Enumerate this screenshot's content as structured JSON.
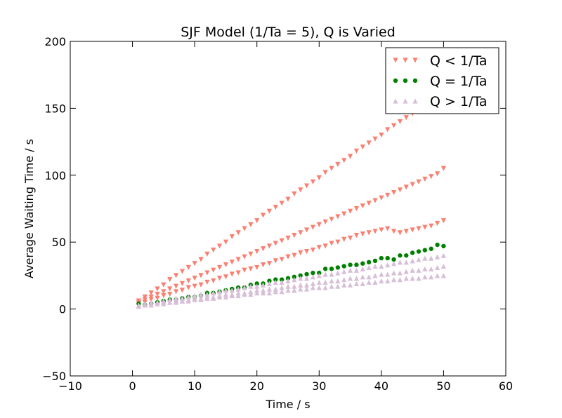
{
  "chart_data": {
    "type": "scatter",
    "title": "SJF Model (1/Ta = 5), Q is Varied",
    "xlabel": "Time / s",
    "ylabel": "Average Waiting Time / s",
    "xlim": [
      -10,
      60
    ],
    "ylim": [
      -50,
      200
    ],
    "xticks": [
      -10,
      0,
      10,
      20,
      30,
      40,
      50,
      60
    ],
    "yticks": [
      -50,
      0,
      50,
      100,
      150,
      200
    ],
    "xtick_labels": [
      "−10",
      "0",
      "10",
      "20",
      "30",
      "40",
      "50",
      "60"
    ],
    "ytick_labels": [
      "−50",
      "0",
      "50",
      "100",
      "150",
      "200"
    ],
    "grid": false,
    "legend_position": "top-right",
    "series": [
      {
        "name": "Q < 1/Ta",
        "marker": "triangle-down",
        "color": "#fa8072",
        "note_slopes": "three sub-series",
        "x": [
          1,
          2,
          3,
          4,
          5,
          6,
          7,
          8,
          9,
          10,
          11,
          12,
          13,
          14,
          15,
          16,
          17,
          18,
          19,
          20,
          21,
          22,
          23,
          24,
          25,
          26,
          27,
          28,
          29,
          30,
          31,
          32,
          33,
          34,
          35,
          36,
          37,
          38,
          39,
          40,
          41,
          42,
          43,
          44,
          45,
          46,
          47,
          48,
          49,
          50,
          1,
          2,
          3,
          4,
          5,
          6,
          7,
          8,
          9,
          10,
          11,
          12,
          13,
          14,
          15,
          16,
          17,
          18,
          19,
          20,
          21,
          22,
          23,
          24,
          25,
          26,
          27,
          28,
          29,
          30,
          31,
          32,
          33,
          34,
          35,
          36,
          37,
          38,
          39,
          40,
          41,
          42,
          43,
          44,
          45,
          46,
          47,
          48,
          49,
          50,
          1,
          2,
          3,
          4,
          5,
          6,
          7,
          8,
          9,
          10,
          11,
          12,
          13,
          14,
          15,
          16,
          17,
          18,
          19,
          20,
          21,
          22,
          23,
          24,
          25,
          26,
          27,
          28,
          29,
          30,
          31,
          32,
          33,
          34,
          35,
          36,
          37,
          38,
          39,
          40,
          41,
          42,
          43,
          44,
          45,
          46,
          47,
          48,
          49,
          50
        ],
        "y": [
          6,
          9,
          12,
          15,
          18,
          22,
          25,
          28,
          31,
          34,
          37,
          41,
          44,
          47,
          50,
          54,
          57,
          60,
          63,
          66,
          70,
          73,
          76,
          79,
          82,
          86,
          89,
          92,
          95,
          98,
          102,
          105,
          108,
          111,
          114,
          118,
          121,
          124,
          127,
          130,
          134,
          137,
          140,
          143,
          146,
          150,
          153,
          156,
          159,
          162,
          5,
          7,
          9,
          11,
          13,
          15,
          17,
          19,
          21,
          23,
          25,
          27,
          29,
          31,
          33,
          35,
          37,
          39,
          41,
          43,
          45,
          47,
          49,
          51,
          53,
          55,
          57,
          59,
          61,
          63,
          65,
          67,
          69,
          71,
          73,
          75,
          77,
          79,
          81,
          83,
          85,
          87,
          89,
          91,
          93,
          95,
          97,
          99,
          101,
          105,
          4,
          5,
          7,
          8,
          10,
          11,
          13,
          14,
          16,
          17,
          18,
          20,
          21,
          23,
          24,
          26,
          27,
          29,
          30,
          31,
          33,
          34,
          36,
          37,
          39,
          40,
          42,
          43,
          44,
          46,
          47,
          49,
          50,
          52,
          53,
          55,
          56,
          57,
          58,
          59,
          60,
          58,
          57,
          58,
          59,
          60,
          61,
          62,
          64,
          66
        ]
      },
      {
        "name": "Q = 1/Ta",
        "marker": "circle",
        "color": "#008000",
        "x": [
          1,
          2,
          3,
          4,
          5,
          6,
          7,
          8,
          9,
          10,
          11,
          12,
          13,
          14,
          15,
          16,
          17,
          18,
          19,
          20,
          21,
          22,
          23,
          24,
          25,
          26,
          27,
          28,
          29,
          30,
          31,
          32,
          33,
          34,
          35,
          36,
          37,
          38,
          39,
          40,
          41,
          42,
          43,
          44,
          45,
          46,
          47,
          48,
          49,
          50
        ],
        "y": [
          4,
          3,
          4,
          5,
          6,
          7,
          7,
          8,
          9,
          9,
          10,
          12,
          12,
          13,
          14,
          15,
          16,
          16,
          18,
          19,
          19,
          21,
          22,
          22,
          23,
          24,
          25,
          26,
          27,
          27,
          30,
          30,
          31,
          32,
          33,
          33,
          34,
          35,
          36,
          38,
          38,
          37,
          40,
          40,
          42,
          43,
          44,
          45,
          48,
          47
        ]
      },
      {
        "name": "Q > 1/Ta",
        "marker": "triangle-up",
        "color": "#d8bfd8",
        "x": [
          1,
          2,
          3,
          4,
          5,
          6,
          7,
          8,
          9,
          10,
          11,
          12,
          13,
          14,
          15,
          16,
          17,
          18,
          19,
          20,
          21,
          22,
          23,
          24,
          25,
          26,
          27,
          28,
          29,
          30,
          31,
          32,
          33,
          34,
          35,
          36,
          37,
          38,
          39,
          40,
          41,
          42,
          43,
          44,
          45,
          46,
          47,
          48,
          49,
          50,
          1,
          2,
          3,
          4,
          5,
          6,
          7,
          8,
          9,
          10,
          11,
          12,
          13,
          14,
          15,
          16,
          17,
          18,
          19,
          20,
          21,
          22,
          23,
          24,
          25,
          26,
          27,
          28,
          29,
          30,
          31,
          32,
          33,
          34,
          35,
          36,
          37,
          38,
          39,
          40,
          41,
          42,
          43,
          44,
          45,
          46,
          47,
          48,
          49,
          50,
          1,
          2,
          3,
          4,
          5,
          6,
          7,
          8,
          9,
          10,
          11,
          12,
          13,
          14,
          15,
          16,
          17,
          18,
          19,
          20,
          21,
          22,
          23,
          24,
          25,
          26,
          27,
          28,
          29,
          30,
          31,
          32,
          33,
          34,
          35,
          36,
          37,
          38,
          39,
          40,
          41,
          42,
          43,
          44,
          45,
          46,
          47,
          48,
          49,
          50
        ],
        "y": [
          3,
          4,
          5,
          5,
          6,
          7,
          8,
          8,
          9,
          10,
          11,
          11,
          12,
          13,
          14,
          14,
          15,
          16,
          17,
          17,
          18,
          19,
          20,
          20,
          21,
          22,
          23,
          23,
          24,
          25,
          26,
          26,
          27,
          28,
          29,
          29,
          30,
          31,
          32,
          32,
          33,
          34,
          35,
          35,
          36,
          37,
          38,
          38,
          39,
          40,
          2,
          3,
          3,
          4,
          5,
          5,
          6,
          6,
          7,
          8,
          8,
          9,
          9,
          10,
          11,
          11,
          12,
          12,
          13,
          14,
          14,
          15,
          15,
          16,
          17,
          17,
          18,
          18,
          19,
          20,
          20,
          21,
          21,
          22,
          23,
          23,
          24,
          24,
          25,
          26,
          26,
          27,
          27,
          28,
          29,
          29,
          30,
          30,
          31,
          32,
          2,
          3,
          3,
          4,
          4,
          5,
          5,
          6,
          6,
          7,
          7,
          8,
          8,
          9,
          9,
          10,
          10,
          11,
          11,
          12,
          12,
          12,
          13,
          13,
          14,
          14,
          15,
          15,
          16,
          16,
          16,
          17,
          17,
          18,
          18,
          19,
          19,
          20,
          20,
          21,
          21,
          22,
          22,
          23,
          23,
          23,
          24,
          24,
          25,
          25
        ]
      }
    ]
  }
}
